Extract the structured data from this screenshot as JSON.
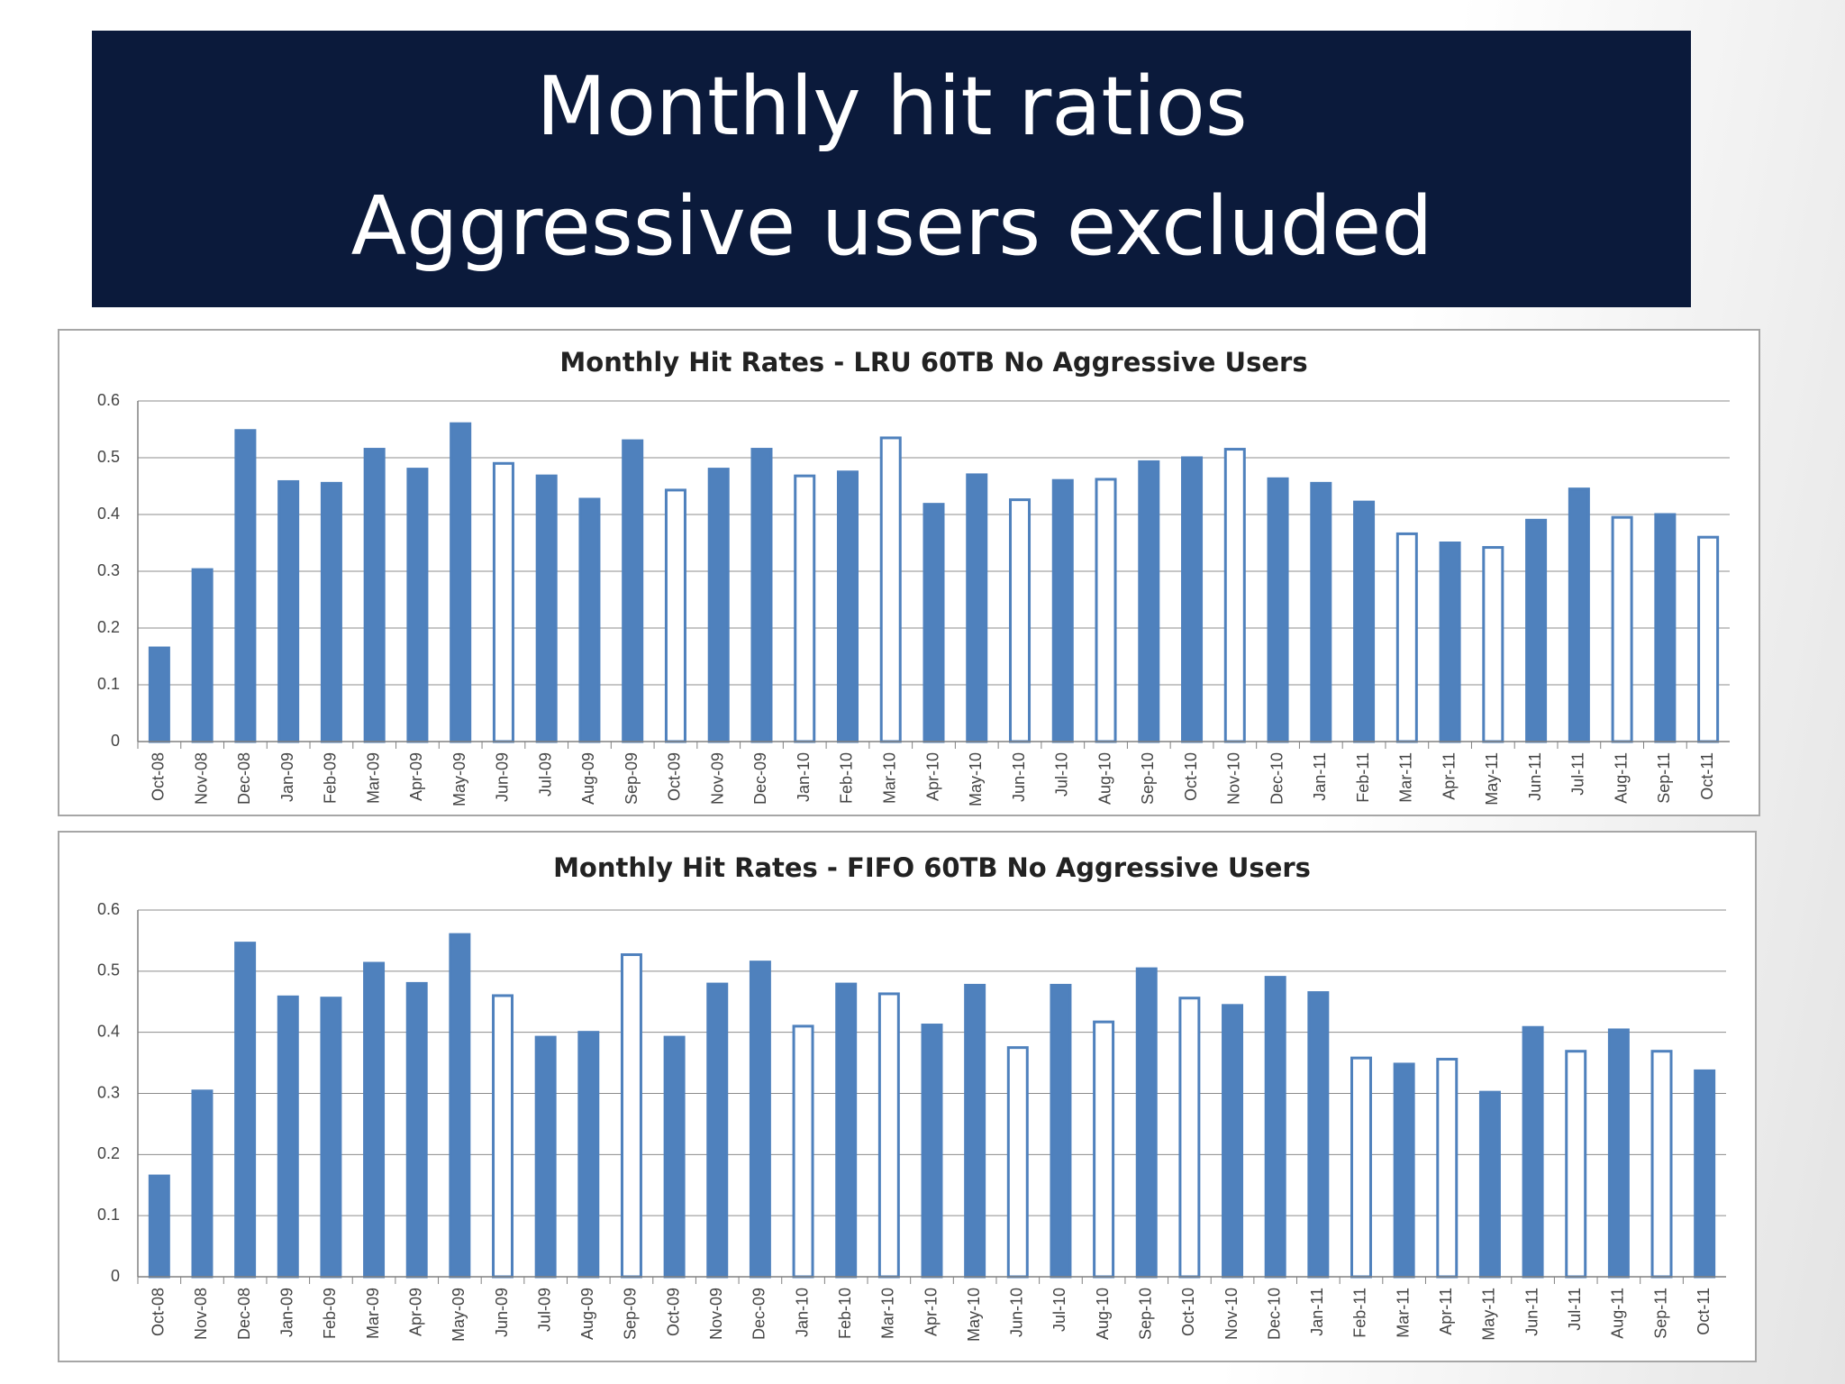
{
  "slide_title": [
    "Monthly hit ratios",
    "Aggressive users excluded"
  ],
  "chart_data": [
    {
      "type": "bar",
      "title": "Monthly Hit Rates - LRU 60TB No Aggressive Users",
      "categories": [
        "Oct-08",
        "Nov-08",
        "Dec-08",
        "Jan-09",
        "Feb-09",
        "Mar-09",
        "Apr-09",
        "May-09",
        "Jun-09",
        "Jul-09",
        "Aug-09",
        "Sep-09",
        "Oct-09",
        "Nov-09",
        "Dec-09",
        "Jan-10",
        "Feb-10",
        "Mar-10",
        "Apr-10",
        "May-10",
        "Jun-10",
        "Jul-10",
        "Aug-10",
        "Sep-10",
        "Oct-10",
        "Nov-10",
        "Dec-10",
        "Jan-11",
        "Feb-11",
        "Mar-11",
        "Apr-11",
        "May-11",
        "Jun-11",
        "Jul-11",
        "Aug-11",
        "Sep-11",
        "Oct-11"
      ],
      "values": [
        0.165,
        0.303,
        0.548,
        0.458,
        0.455,
        0.515,
        0.48,
        0.56,
        0.49,
        0.468,
        0.427,
        0.53,
        0.443,
        0.48,
        0.515,
        0.468,
        0.475,
        0.535,
        0.418,
        0.47,
        0.426,
        0.46,
        0.462,
        0.493,
        0.5,
        0.515,
        0.463,
        0.455,
        0.422,
        0.366,
        0.35,
        0.342,
        0.39,
        0.445,
        0.395,
        0.4,
        0.36
      ],
      "color": "#4f81bd",
      "fills": [
        "#4f81bd",
        "#4f81bd",
        "#4f81bd",
        "#4f81bd",
        "#4f81bd",
        "#4f81bd",
        "#4f81bd",
        "#4f81bd",
        "#ffffff",
        "#4f81bd",
        "#4f81bd",
        "#4f81bd",
        "#ffffff",
        "#4f81bd",
        "#4f81bd",
        "#ffffff",
        "#4f81bd",
        "#ffffff",
        "#4f81bd",
        "#4f81bd",
        "#ffffff",
        "#4f81bd",
        "#ffffff",
        "#4f81bd",
        "#4f81bd",
        "#ffffff",
        "#4f81bd",
        "#4f81bd",
        "#4f81bd",
        "#ffffff",
        "#4f81bd",
        "#ffffff",
        "#4f81bd",
        "#4f81bd",
        "#ffffff",
        "#4f81bd",
        "#ffffff"
      ],
      "ylim": [
        0,
        0.6
      ],
      "yticks": [
        0,
        0.1,
        0.2,
        0.3,
        0.4,
        0.5,
        0.6
      ],
      "grid": true
    },
    {
      "type": "bar",
      "title": "Monthly Hit Rates - FIFO 60TB No Aggressive Users",
      "categories": [
        "Oct-08",
        "Nov-08",
        "Dec-08",
        "Jan-09",
        "Feb-09",
        "Mar-09",
        "Apr-09",
        "May-09",
        "Jun-09",
        "Jul-09",
        "Aug-09",
        "Sep-09",
        "Oct-09",
        "Nov-09",
        "Dec-09",
        "Jan-10",
        "Feb-10",
        "Mar-10",
        "Apr-10",
        "May-10",
        "Jun-10",
        "Jul-10",
        "Aug-10",
        "Sep-10",
        "Oct-10",
        "Nov-10",
        "Dec-10",
        "Jan-11",
        "Feb-11",
        "Mar-11",
        "Apr-11",
        "May-11",
        "Jun-11",
        "Jul-11",
        "Aug-11",
        "Sep-11",
        "Oct-11"
      ],
      "values": [
        0.165,
        0.304,
        0.546,
        0.458,
        0.456,
        0.513,
        0.48,
        0.56,
        0.46,
        0.392,
        0.4,
        0.527,
        0.392,
        0.479,
        0.515,
        0.41,
        0.479,
        0.463,
        0.412,
        0.477,
        0.375,
        0.477,
        0.417,
        0.504,
        0.456,
        0.444,
        0.49,
        0.465,
        0.358,
        0.348,
        0.356,
        0.302,
        0.408,
        0.369,
        0.404,
        0.369,
        0.337
      ],
      "color": "#4f81bd",
      "fills": [
        "#4f81bd",
        "#4f81bd",
        "#4f81bd",
        "#4f81bd",
        "#4f81bd",
        "#4f81bd",
        "#4f81bd",
        "#4f81bd",
        "#ffffff",
        "#4f81bd",
        "#4f81bd",
        "#ffffff",
        "#4f81bd",
        "#4f81bd",
        "#4f81bd",
        "#ffffff",
        "#4f81bd",
        "#ffffff",
        "#4f81bd",
        "#4f81bd",
        "#ffffff",
        "#4f81bd",
        "#ffffff",
        "#4f81bd",
        "#ffffff",
        "#4f81bd",
        "#4f81bd",
        "#4f81bd",
        "#ffffff",
        "#4f81bd",
        "#ffffff",
        "#4f81bd",
        "#4f81bd",
        "#ffffff",
        "#4f81bd",
        "#ffffff",
        "#4f81bd"
      ],
      "ylim": [
        0,
        0.6
      ],
      "yticks": [
        0,
        0.1,
        0.2,
        0.3,
        0.4,
        0.5,
        0.6
      ],
      "grid": true
    }
  ]
}
